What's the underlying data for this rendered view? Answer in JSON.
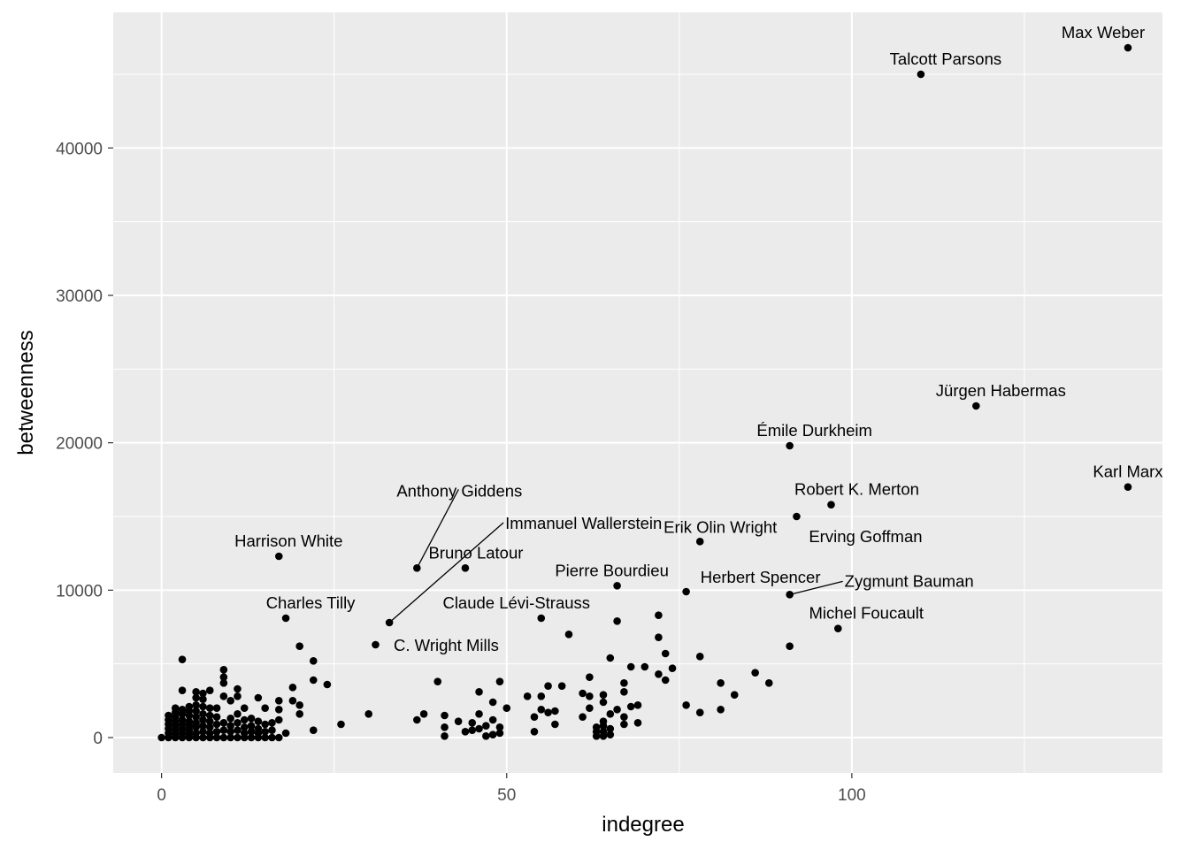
{
  "chart_data": {
    "type": "scatter",
    "title": "",
    "xlabel": "indegree",
    "ylabel": "betweenness",
    "xlim": [
      -7,
      145
    ],
    "ylim": [
      -2400,
      49200
    ],
    "x_ticks": [
      0,
      50,
      100
    ],
    "y_ticks": [
      0,
      10000,
      20000,
      30000,
      40000
    ],
    "x_tick_labels": [
      "0",
      "50",
      "100"
    ],
    "y_tick_labels": [
      "0",
      "10000",
      "20000",
      "30000",
      "40000"
    ],
    "grid": true,
    "background_color": "#EBEBEB",
    "grid_color": "#FFFFFF",
    "point_color": "#000000",
    "labeled_points": [
      {
        "name": "Max Weber",
        "x": 140,
        "y": 46800
      },
      {
        "name": "Talcott Parsons",
        "x": 110,
        "y": 45000
      },
      {
        "name": "Jürgen Habermas",
        "x": 118,
        "y": 22500
      },
      {
        "name": "Émile Durkheim",
        "x": 91,
        "y": 19800
      },
      {
        "name": "Karl Marx",
        "x": 140,
        "y": 17000
      },
      {
        "name": "Robert K. Merton",
        "x": 97,
        "y": 15800
      },
      {
        "name": "Erving Goffman",
        "x": 92,
        "y": 15000
      },
      {
        "name": "Erik Olin Wright",
        "x": 78,
        "y": 13300
      },
      {
        "name": "Anthony Giddens",
        "x": 37,
        "y": 11500
      },
      {
        "name": "Bruno Latour",
        "x": 44,
        "y": 11500
      },
      {
        "name": "Harrison White",
        "x": 17,
        "y": 12300
      },
      {
        "name": "Immanuel Wallerstein",
        "x": 33,
        "y": 7800
      },
      {
        "name": "Pierre Bourdieu",
        "x": 66,
        "y": 10300
      },
      {
        "name": "Herbert Spencer",
        "x": 76,
        "y": 9900
      },
      {
        "name": "Zygmunt Bauman",
        "x": 91,
        "y": 9700
      },
      {
        "name": "Charles Tilly",
        "x": 18,
        "y": 8100
      },
      {
        "name": "Claude Lévi-Strauss",
        "x": 55,
        "y": 8100
      },
      {
        "name": "Michel Foucault",
        "x": 98,
        "y": 7400
      },
      {
        "name": "C. Wright Mills",
        "x": 31,
        "y": 6300
      }
    ],
    "points": [
      [
        0,
        0
      ],
      [
        1,
        0
      ],
      [
        1,
        300
      ],
      [
        1,
        600
      ],
      [
        1,
        900
      ],
      [
        1,
        1200
      ],
      [
        1,
        1500
      ],
      [
        2,
        0
      ],
      [
        2,
        200
      ],
      [
        2,
        500
      ],
      [
        2,
        800
      ],
      [
        2,
        1100
      ],
      [
        2,
        1400
      ],
      [
        2,
        1700
      ],
      [
        2,
        2000
      ],
      [
        3,
        0
      ],
      [
        3,
        300
      ],
      [
        3,
        600
      ],
      [
        3,
        900
      ],
      [
        3,
        1200
      ],
      [
        3,
        1600
      ],
      [
        3,
        1900
      ],
      [
        3,
        3200
      ],
      [
        3,
        5300
      ],
      [
        4,
        0
      ],
      [
        4,
        200
      ],
      [
        4,
        500
      ],
      [
        4,
        800
      ],
      [
        4,
        1100
      ],
      [
        4,
        1500
      ],
      [
        4,
        1800
      ],
      [
        4,
        2100
      ],
      [
        5,
        0
      ],
      [
        5,
        300
      ],
      [
        5,
        700
      ],
      [
        5,
        1000
      ],
      [
        5,
        1400
      ],
      [
        5,
        1800
      ],
      [
        5,
        2200
      ],
      [
        5,
        2700
      ],
      [
        5,
        3100
      ],
      [
        6,
        0
      ],
      [
        6,
        400
      ],
      [
        6,
        800
      ],
      [
        6,
        1200
      ],
      [
        6,
        1600
      ],
      [
        6,
        2100
      ],
      [
        6,
        2600
      ],
      [
        6,
        3000
      ],
      [
        7,
        0
      ],
      [
        7,
        300
      ],
      [
        7,
        700
      ],
      [
        7,
        1100
      ],
      [
        7,
        1500
      ],
      [
        7,
        2000
      ],
      [
        7,
        3200
      ],
      [
        8,
        0
      ],
      [
        8,
        400
      ],
      [
        8,
        900
      ],
      [
        8,
        1400
      ],
      [
        8,
        2000
      ],
      [
        9,
        0
      ],
      [
        9,
        500
      ],
      [
        9,
        1000
      ],
      [
        9,
        2800
      ],
      [
        9,
        3700
      ],
      [
        9,
        4100
      ],
      [
        9,
        4600
      ],
      [
        10,
        0
      ],
      [
        10,
        400
      ],
      [
        10,
        800
      ],
      [
        10,
        1300
      ],
      [
        10,
        2500
      ],
      [
        11,
        0
      ],
      [
        11,
        500
      ],
      [
        11,
        1000
      ],
      [
        11,
        1600
      ],
      [
        11,
        2800
      ],
      [
        11,
        3300
      ],
      [
        12,
        0
      ],
      [
        12,
        300
      ],
      [
        12,
        700
      ],
      [
        12,
        1200
      ],
      [
        12,
        2000
      ],
      [
        13,
        0
      ],
      [
        13,
        400
      ],
      [
        13,
        800
      ],
      [
        13,
        1300
      ],
      [
        14,
        0
      ],
      [
        14,
        300
      ],
      [
        14,
        600
      ],
      [
        14,
        1100
      ],
      [
        14,
        2700
      ],
      [
        15,
        0
      ],
      [
        15,
        400
      ],
      [
        15,
        900
      ],
      [
        15,
        2000
      ],
      [
        16,
        0
      ],
      [
        16,
        500
      ],
      [
        16,
        1000
      ],
      [
        17,
        0
      ],
      [
        17,
        1200
      ],
      [
        17,
        1900
      ],
      [
        17,
        2500
      ],
      [
        18,
        300
      ],
      [
        19,
        2500
      ],
      [
        19,
        3400
      ],
      [
        20,
        1600
      ],
      [
        20,
        2200
      ],
      [
        20,
        6200
      ],
      [
        22,
        500
      ],
      [
        22,
        3900
      ],
      [
        22,
        5200
      ],
      [
        24,
        3600
      ],
      [
        26,
        900
      ],
      [
        30,
        1600
      ],
      [
        37,
        1200
      ],
      [
        38,
        1600
      ],
      [
        40,
        3800
      ],
      [
        41,
        100
      ],
      [
        41,
        700
      ],
      [
        41,
        1500
      ],
      [
        43,
        1100
      ],
      [
        44,
        400
      ],
      [
        45,
        500
      ],
      [
        45,
        1000
      ],
      [
        46,
        600
      ],
      [
        46,
        1600
      ],
      [
        46,
        3100
      ],
      [
        47,
        100
      ],
      [
        47,
        800
      ],
      [
        48,
        200
      ],
      [
        48,
        1200
      ],
      [
        48,
        2400
      ],
      [
        49,
        300
      ],
      [
        49,
        700
      ],
      [
        49,
        3800
      ],
      [
        50,
        2000
      ],
      [
        53,
        2800
      ],
      [
        54,
        400
      ],
      [
        54,
        1400
      ],
      [
        55,
        1900
      ],
      [
        55,
        2800
      ],
      [
        56,
        1700
      ],
      [
        56,
        3500
      ],
      [
        57,
        900
      ],
      [
        57,
        1800
      ],
      [
        58,
        3500
      ],
      [
        59,
        7000
      ],
      [
        61,
        1400
      ],
      [
        61,
        3000
      ],
      [
        62,
        2000
      ],
      [
        62,
        2800
      ],
      [
        62,
        4100
      ],
      [
        63,
        100
      ],
      [
        63,
        400
      ],
      [
        63,
        700
      ],
      [
        64,
        100
      ],
      [
        64,
        400
      ],
      [
        64,
        800
      ],
      [
        64,
        1100
      ],
      [
        64,
        2400
      ],
      [
        64,
        2900
      ],
      [
        65,
        200
      ],
      [
        65,
        600
      ],
      [
        65,
        1600
      ],
      [
        65,
        5400
      ],
      [
        66,
        1900
      ],
      [
        66,
        7900
      ],
      [
        67,
        900
      ],
      [
        67,
        1400
      ],
      [
        67,
        3100
      ],
      [
        67,
        3700
      ],
      [
        68,
        2100
      ],
      [
        68,
        4800
      ],
      [
        69,
        1000
      ],
      [
        69,
        2200
      ],
      [
        70,
        4800
      ],
      [
        72,
        4300
      ],
      [
        72,
        6800
      ],
      [
        72,
        8300
      ],
      [
        73,
        3900
      ],
      [
        73,
        5700
      ],
      [
        74,
        4700
      ],
      [
        76,
        2200
      ],
      [
        78,
        1700
      ],
      [
        78,
        5500
      ],
      [
        81,
        1900
      ],
      [
        81,
        3700
      ],
      [
        83,
        2900
      ],
      [
        86,
        4400
      ],
      [
        88,
        3700
      ],
      [
        91,
        6200
      ]
    ]
  }
}
